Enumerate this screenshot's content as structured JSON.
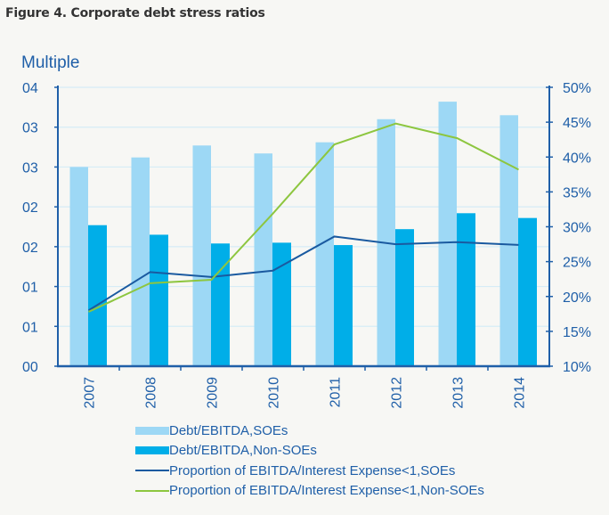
{
  "figure_title": "Figure 4. Corporate debt stress ratios",
  "colors": {
    "soe_bar": "#9dd8f5",
    "nonsoe_bar": "#00aee8",
    "soe_line": "#1a5aa0",
    "nonsoe_line": "#8dc63f",
    "axis": "#1f5fa8",
    "grid": "#d6ecf6"
  },
  "chart_data": {
    "type": "bar",
    "title": "Figure 4. Corporate debt stress ratios",
    "ylabel": "Multiple",
    "xlabel": "",
    "categories": [
      "2007",
      "2008",
      "2009",
      "2010",
      "2011",
      "2012",
      "2013",
      "2014"
    ],
    "y_left": {
      "range": [
        0,
        3.5
      ],
      "step": 0.5,
      "tick_labels": [
        "00",
        "01",
        "01",
        "02",
        "02",
        "03",
        "03",
        "04"
      ]
    },
    "y_right": {
      "range": [
        10,
        50
      ],
      "step": 5,
      "tick_labels": [
        "10%",
        "15%",
        "20%",
        "25%",
        "30%",
        "35%",
        "40%",
        "45%",
        "50%"
      ]
    },
    "grid": true,
    "legend_position": "bottom",
    "series": [
      {
        "name": "Debt/EBITDA,SOEs",
        "type": "bar",
        "axis": "left",
        "values": [
          2.5,
          2.62,
          2.77,
          2.67,
          2.81,
          3.1,
          3.32,
          3.15
        ]
      },
      {
        "name": "Debt/EBITDA,Non-SOEs",
        "type": "bar",
        "axis": "left",
        "values": [
          1.77,
          1.65,
          1.54,
          1.55,
          1.52,
          1.72,
          1.92,
          1.86
        ]
      },
      {
        "name": "Proportion of EBITDA/Interest Expense<1,SOEs",
        "type": "line",
        "axis": "right",
        "unit": "%",
        "values": [
          18.0,
          23.5,
          22.8,
          23.7,
          28.6,
          27.5,
          27.8,
          27.4
        ]
      },
      {
        "name": "Proportion of EBITDA/Interest Expense<1,Non-SOEs",
        "type": "line",
        "axis": "right",
        "unit": "%",
        "values": [
          17.8,
          21.9,
          22.4,
          31.9,
          41.8,
          44.8,
          42.7,
          38.2
        ]
      }
    ]
  }
}
